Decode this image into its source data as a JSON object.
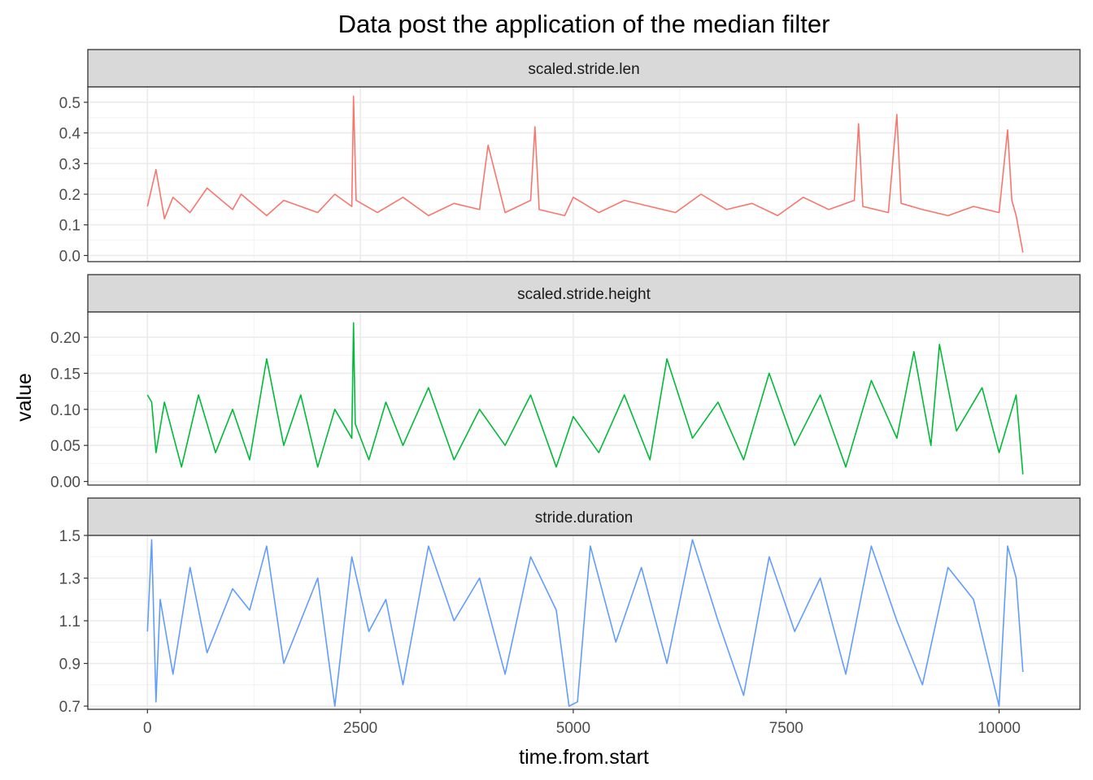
{
  "chart_data": {
    "type": "line",
    "title": "Data post the application of the median filter",
    "xlabel": "time.from.start",
    "ylabel": "value",
    "xlim": [
      -700,
      10950
    ],
    "x_ticks": [
      0,
      2500,
      5000,
      7500,
      10000
    ],
    "x_tick_labels": [
      "0",
      "2500",
      "5000",
      "7500",
      "10000"
    ],
    "grid": true,
    "facet_layout": "stacked vertically, shared x axis",
    "facets": [
      {
        "strip": "scaled.stride.len",
        "color": "#F8766D",
        "ylim": [
          -0.02,
          0.55
        ],
        "y_ticks": [
          0.0,
          0.1,
          0.2,
          0.3,
          0.4,
          0.5
        ],
        "y_tick_labels": [
          "0.0",
          "0.1",
          "0.2",
          "0.3",
          "0.4",
          "0.5"
        ],
        "x": [
          0,
          100,
          200,
          300,
          500,
          700,
          1000,
          1100,
          1400,
          1600,
          2000,
          2200,
          2400,
          2420,
          2450,
          2700,
          3000,
          3300,
          3600,
          3900,
          4000,
          4200,
          4500,
          4550,
          4600,
          4900,
          5000,
          5300,
          5600,
          5900,
          6200,
          6500,
          6800,
          7100,
          7400,
          7700,
          8000,
          8300,
          8350,
          8400,
          8700,
          8800,
          8850,
          9100,
          9400,
          9700,
          10000,
          10100,
          10150,
          10200,
          10280
        ],
        "values": [
          0.16,
          0.28,
          0.12,
          0.19,
          0.14,
          0.22,
          0.15,
          0.2,
          0.13,
          0.18,
          0.14,
          0.2,
          0.16,
          0.52,
          0.18,
          0.14,
          0.19,
          0.13,
          0.17,
          0.15,
          0.36,
          0.14,
          0.18,
          0.42,
          0.15,
          0.13,
          0.19,
          0.14,
          0.18,
          0.16,
          0.14,
          0.2,
          0.15,
          0.17,
          0.13,
          0.19,
          0.15,
          0.18,
          0.43,
          0.16,
          0.14,
          0.46,
          0.17,
          0.15,
          0.13,
          0.16,
          0.14,
          0.41,
          0.18,
          0.13,
          0.01
        ]
      },
      {
        "strip": "scaled.stride.height",
        "color": "#00BA38",
        "ylim": [
          -0.005,
          0.235
        ],
        "y_ticks": [
          0.0,
          0.05,
          0.1,
          0.15,
          0.2
        ],
        "y_tick_labels": [
          "0.00",
          "0.05",
          "0.10",
          "0.15",
          "0.20"
        ],
        "x": [
          0,
          50,
          100,
          200,
          400,
          600,
          800,
          1000,
          1200,
          1400,
          1600,
          1800,
          2000,
          2200,
          2400,
          2420,
          2440,
          2600,
          2800,
          3000,
          3300,
          3600,
          3900,
          4200,
          4500,
          4800,
          5000,
          5300,
          5600,
          5900,
          6100,
          6400,
          6700,
          7000,
          7300,
          7600,
          7900,
          8200,
          8500,
          8800,
          9000,
          9200,
          9300,
          9500,
          9800,
          10000,
          10200,
          10280
        ],
        "values": [
          0.12,
          0.11,
          0.04,
          0.11,
          0.02,
          0.12,
          0.04,
          0.1,
          0.03,
          0.17,
          0.05,
          0.12,
          0.02,
          0.1,
          0.06,
          0.22,
          0.08,
          0.03,
          0.11,
          0.05,
          0.13,
          0.03,
          0.1,
          0.05,
          0.12,
          0.02,
          0.09,
          0.04,
          0.12,
          0.03,
          0.17,
          0.06,
          0.11,
          0.03,
          0.15,
          0.05,
          0.12,
          0.02,
          0.14,
          0.06,
          0.18,
          0.05,
          0.19,
          0.07,
          0.13,
          0.04,
          0.12,
          0.01
        ]
      },
      {
        "strip": "stride.duration",
        "color": "#619CFF",
        "ylim": [
          0.685,
          1.5
        ],
        "y_ticks": [
          0.7,
          0.9,
          1.1,
          1.3,
          1.5
        ],
        "y_tick_labels": [
          "0.7",
          "0.9",
          "1.1",
          "1.3",
          "1.5"
        ],
        "x": [
          0,
          50,
          100,
          150,
          300,
          500,
          700,
          1000,
          1200,
          1400,
          1600,
          2000,
          2200,
          2400,
          2600,
          2800,
          3000,
          3300,
          3600,
          3900,
          4200,
          4500,
          4800,
          4950,
          5050,
          5200,
          5500,
          5800,
          6100,
          6400,
          6700,
          7000,
          7300,
          7600,
          7900,
          8200,
          8500,
          8800,
          9100,
          9400,
          9700,
          10000,
          10100,
          10200,
          10280
        ],
        "values": [
          1.05,
          1.48,
          0.72,
          1.2,
          0.85,
          1.35,
          0.95,
          1.25,
          1.15,
          1.45,
          0.9,
          1.3,
          0.7,
          1.4,
          1.05,
          1.2,
          0.8,
          1.45,
          1.1,
          1.3,
          0.85,
          1.4,
          1.15,
          0.7,
          0.72,
          1.45,
          1.0,
          1.35,
          0.9,
          1.48,
          1.1,
          0.75,
          1.4,
          1.05,
          1.3,
          0.85,
          1.45,
          1.1,
          0.8,
          1.35,
          1.2,
          0.7,
          1.45,
          1.3,
          0.86
        ]
      }
    ]
  }
}
